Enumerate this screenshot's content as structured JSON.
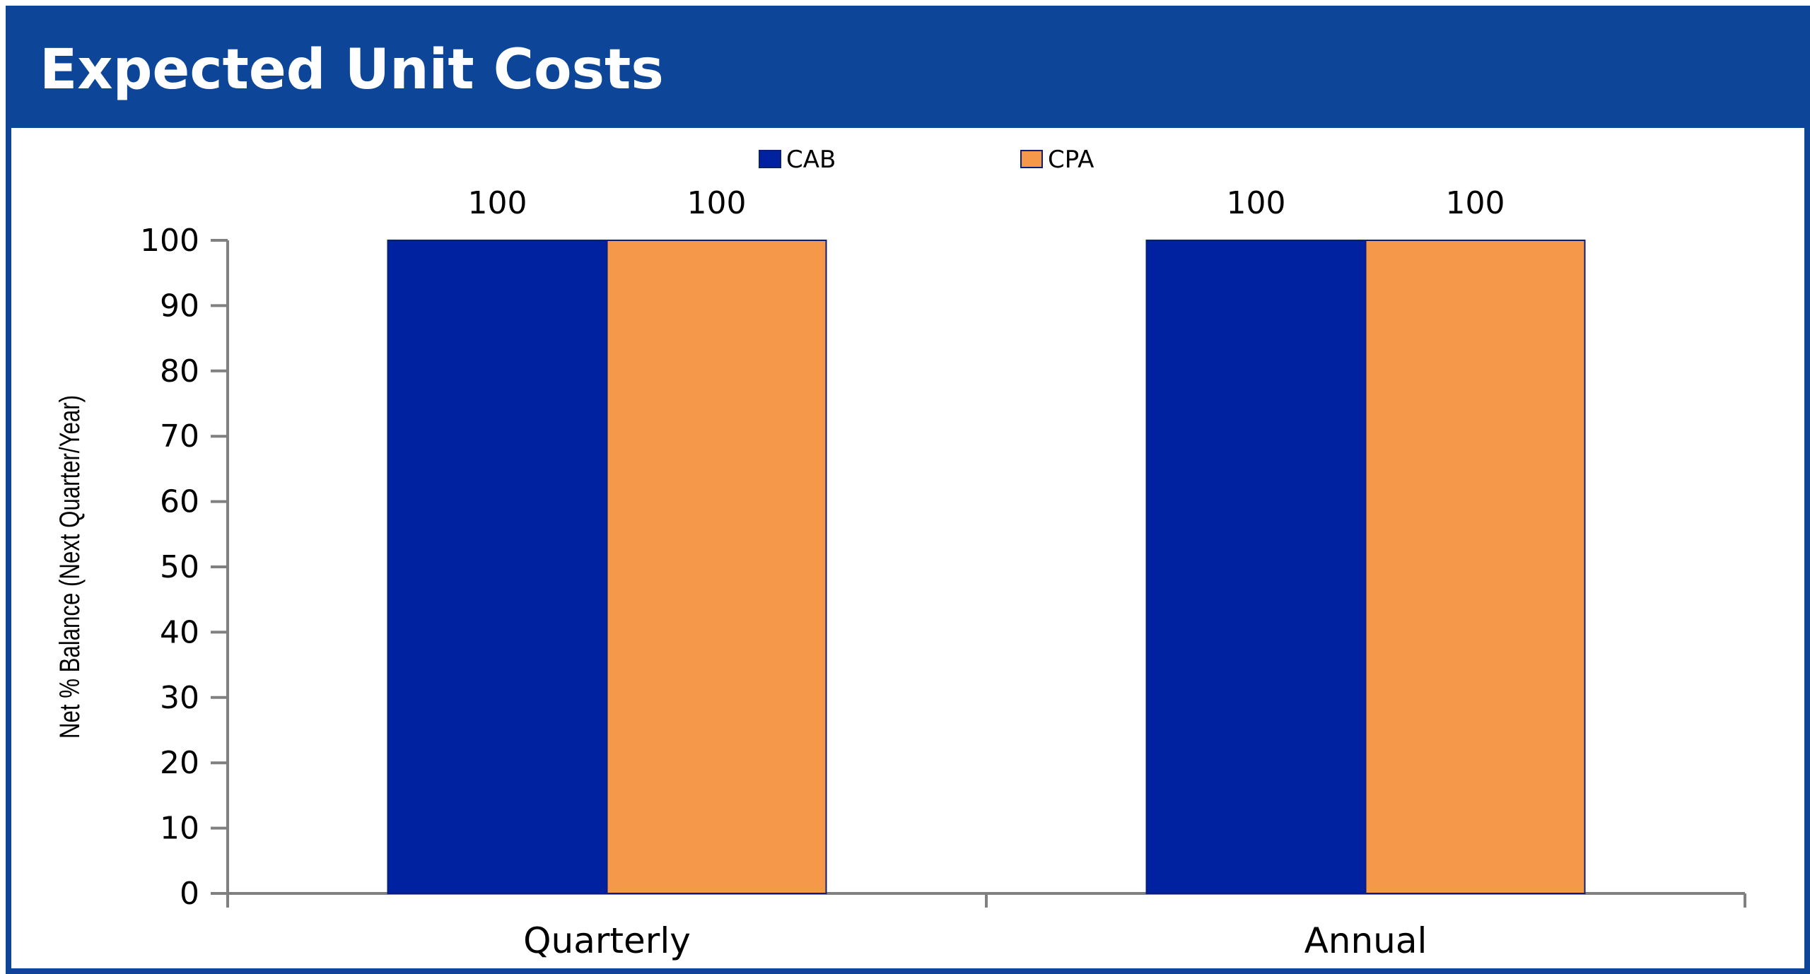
{
  "header": {
    "title": "Expected Unit Costs"
  },
  "colors": {
    "frame": "#0d4699",
    "series_cab": "#0022a0",
    "series_cpa": "#f59849",
    "axis": "#808080"
  },
  "chart_data": {
    "type": "bar",
    "title": "Expected Unit Costs",
    "xlabel": "",
    "ylabel": "Net % Balance (Next Quarter/Year)",
    "ylim": [
      0,
      100
    ],
    "yticks": [
      0,
      10,
      20,
      30,
      40,
      50,
      60,
      70,
      80,
      90,
      100
    ],
    "categories": [
      "Quarterly",
      "Annual"
    ],
    "series": [
      {
        "name": "CAB",
        "values": [
          100,
          100
        ]
      },
      {
        "name": "CPA",
        "values": [
          100,
          100
        ]
      }
    ],
    "data_labels": true,
    "legend_position": "top-center",
    "grid": false
  }
}
